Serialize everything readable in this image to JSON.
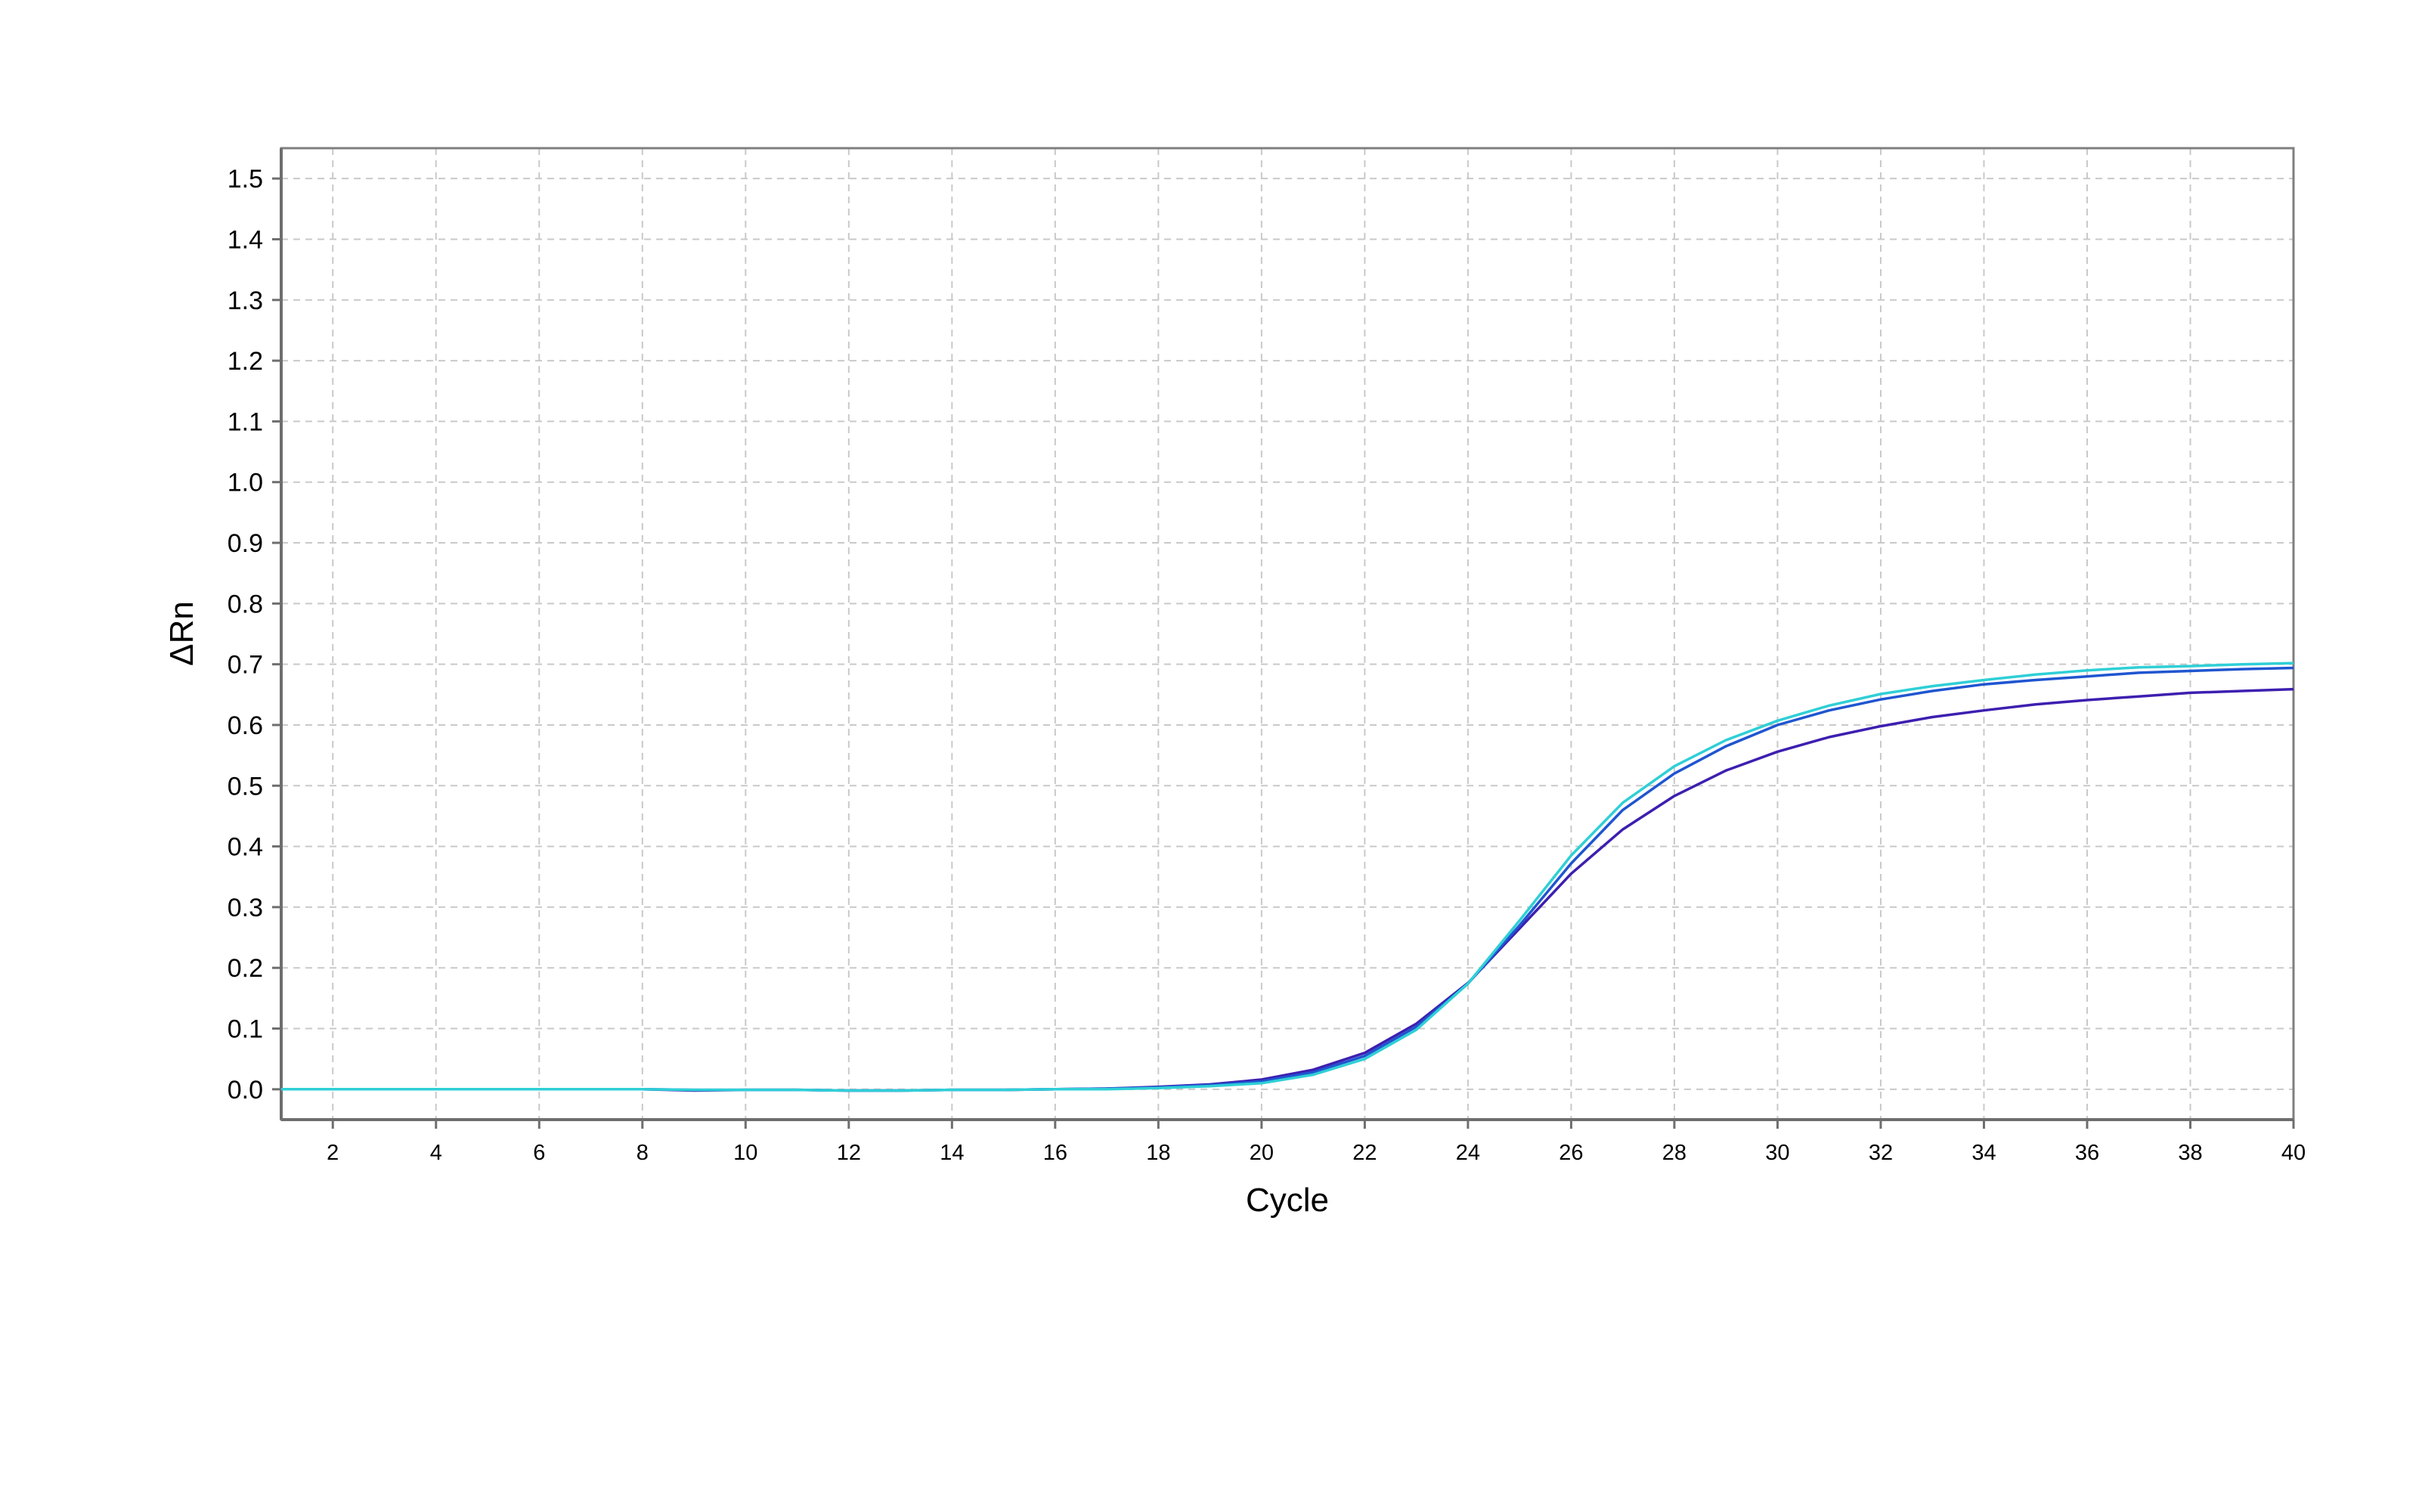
{
  "chart_data": {
    "type": "line",
    "title": "",
    "xlabel": "Cycle",
    "ylabel": "ΔRn",
    "xlim": [
      1,
      40
    ],
    "ylim": [
      -0.05,
      1.55
    ],
    "x_ticks": [
      2,
      4,
      6,
      8,
      10,
      12,
      14,
      16,
      18,
      20,
      22,
      24,
      26,
      28,
      30,
      32,
      34,
      36,
      38,
      40
    ],
    "y_ticks": [
      "0.0",
      "0.1",
      "0.2",
      "0.3",
      "0.4",
      "0.5",
      "0.6",
      "0.7",
      "0.8",
      "0.9",
      "1.0",
      "1.1",
      "1.2",
      "1.3",
      "1.4",
      "1.5"
    ],
    "y_tick_values": [
      0.0,
      0.1,
      0.2,
      0.3,
      0.4,
      0.5,
      0.6,
      0.7,
      0.8,
      0.9,
      1.0,
      1.1,
      1.2,
      1.3,
      1.4,
      1.5
    ],
    "grid": true,
    "legend": "none",
    "x": [
      1,
      2,
      3,
      4,
      5,
      6,
      7,
      8,
      9,
      10,
      11,
      12,
      13,
      14,
      15,
      16,
      17,
      18,
      19,
      20,
      21,
      22,
      23,
      24,
      25,
      26,
      27,
      28,
      29,
      30,
      31,
      32,
      33,
      34,
      35,
      36,
      37,
      38,
      39,
      40
    ],
    "series": [
      {
        "color": "#3d1fb0",
        "values": [
          0.0,
          0.0,
          0.0,
          0.0,
          0.0,
          0.0,
          0.0,
          0.0,
          -0.002,
          -0.001,
          -0.001,
          -0.002,
          -0.002,
          -0.001,
          -0.001,
          0.0,
          0.001,
          0.004,
          0.008,
          0.016,
          0.032,
          0.06,
          0.108,
          0.175,
          0.265,
          0.355,
          0.428,
          0.483,
          0.525,
          0.556,
          0.58,
          0.598,
          0.613,
          0.624,
          0.634,
          0.641,
          0.647,
          0.653,
          0.656,
          0.659
        ]
      },
      {
        "color": "#1f55d0",
        "values": [
          0.0,
          0.0,
          0.0,
          0.0,
          0.0,
          0.0,
          0.0,
          0.0,
          -0.001,
          -0.001,
          -0.001,
          -0.002,
          -0.002,
          -0.001,
          -0.001,
          0.0,
          0.001,
          0.003,
          0.007,
          0.013,
          0.028,
          0.055,
          0.103,
          0.174,
          0.27,
          0.372,
          0.46,
          0.52,
          0.565,
          0.6,
          0.624,
          0.642,
          0.656,
          0.667,
          0.674,
          0.68,
          0.686,
          0.689,
          0.692,
          0.694
        ]
      },
      {
        "color": "#2fcfd6",
        "values": [
          0.0,
          0.0,
          0.0,
          0.0,
          0.0,
          0.0,
          0.0,
          0.0,
          -0.001,
          -0.001,
          -0.001,
          -0.002,
          -0.002,
          -0.001,
          -0.001,
          0.0,
          0.0,
          0.002,
          0.005,
          0.01,
          0.024,
          0.05,
          0.098,
          0.174,
          0.278,
          0.385,
          0.472,
          0.532,
          0.575,
          0.607,
          0.632,
          0.651,
          0.664,
          0.674,
          0.683,
          0.69,
          0.695,
          0.697,
          0.7,
          0.702
        ]
      }
    ]
  }
}
